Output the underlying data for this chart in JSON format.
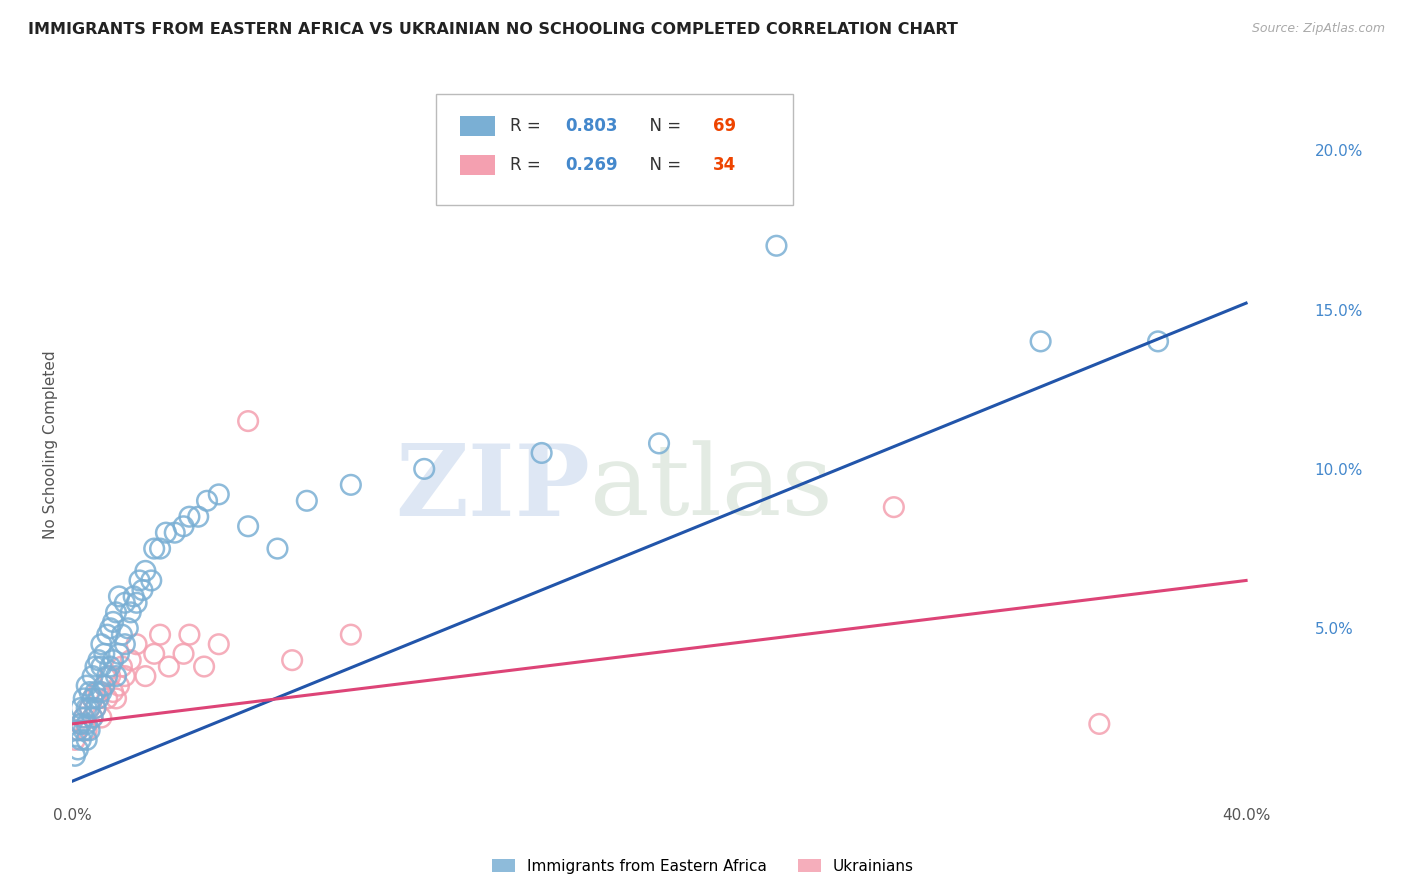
{
  "title": "IMMIGRANTS FROM EASTERN AFRICA VS UKRAINIAN NO SCHOOLING COMPLETED CORRELATION CHART",
  "source": "Source: ZipAtlas.com",
  "ylabel": "No Schooling Completed",
  "watermark_zip": "ZIP",
  "watermark_atlas": "atlas",
  "blue_label": "Immigrants from Eastern Africa",
  "pink_label": "Ukrainians",
  "blue_R": 0.803,
  "blue_N": 69,
  "pink_R": 0.269,
  "pink_N": 34,
  "xlim": [
    0.0,
    0.42
  ],
  "ylim": [
    -0.005,
    0.22
  ],
  "x_ticks": [
    0.0,
    0.1,
    0.2,
    0.3,
    0.4
  ],
  "x_tick_labels": [
    "0.0%",
    "",
    "",
    "",
    "40.0%"
  ],
  "y_ticks_right": [
    0.0,
    0.05,
    0.1,
    0.15,
    0.2
  ],
  "y_tick_labels_right": [
    "",
    "5.0%",
    "10.0%",
    "15.0%",
    "20.0%"
  ],
  "blue_color": "#7aafd4",
  "pink_color": "#f4a0b0",
  "line_blue_color": "#2255aa",
  "line_pink_color": "#dd4477",
  "background_color": "#ffffff",
  "grid_color": "#cccccc",
  "blue_scatter_x": [
    0.001,
    0.002,
    0.002,
    0.003,
    0.003,
    0.003,
    0.004,
    0.004,
    0.004,
    0.005,
    0.005,
    0.005,
    0.005,
    0.006,
    0.006,
    0.006,
    0.007,
    0.007,
    0.007,
    0.008,
    0.008,
    0.008,
    0.009,
    0.009,
    0.01,
    0.01,
    0.01,
    0.011,
    0.011,
    0.012,
    0.012,
    0.013,
    0.013,
    0.014,
    0.014,
    0.015,
    0.015,
    0.016,
    0.016,
    0.017,
    0.018,
    0.018,
    0.019,
    0.02,
    0.021,
    0.022,
    0.023,
    0.024,
    0.025,
    0.027,
    0.028,
    0.03,
    0.032,
    0.035,
    0.038,
    0.04,
    0.043,
    0.046,
    0.05,
    0.06,
    0.07,
    0.08,
    0.095,
    0.12,
    0.16,
    0.2,
    0.24,
    0.33,
    0.37
  ],
  "blue_scatter_y": [
    0.01,
    0.012,
    0.018,
    0.015,
    0.02,
    0.025,
    0.018,
    0.022,
    0.028,
    0.015,
    0.02,
    0.025,
    0.032,
    0.018,
    0.025,
    0.03,
    0.022,
    0.028,
    0.035,
    0.025,
    0.03,
    0.038,
    0.028,
    0.04,
    0.03,
    0.038,
    0.045,
    0.032,
    0.042,
    0.035,
    0.048,
    0.038,
    0.05,
    0.04,
    0.052,
    0.035,
    0.055,
    0.042,
    0.06,
    0.048,
    0.045,
    0.058,
    0.05,
    0.055,
    0.06,
    0.058,
    0.065,
    0.062,
    0.068,
    0.065,
    0.075,
    0.075,
    0.08,
    0.08,
    0.082,
    0.085,
    0.085,
    0.09,
    0.092,
    0.082,
    0.075,
    0.09,
    0.095,
    0.1,
    0.105,
    0.108,
    0.17,
    0.14,
    0.14
  ],
  "pink_scatter_x": [
    0.001,
    0.002,
    0.003,
    0.004,
    0.005,
    0.006,
    0.007,
    0.007,
    0.008,
    0.009,
    0.01,
    0.011,
    0.012,
    0.013,
    0.014,
    0.015,
    0.016,
    0.017,
    0.018,
    0.02,
    0.022,
    0.025,
    0.028,
    0.03,
    0.033,
    0.038,
    0.04,
    0.045,
    0.05,
    0.06,
    0.075,
    0.095,
    0.28,
    0.35
  ],
  "pink_scatter_y": [
    0.015,
    0.018,
    0.02,
    0.022,
    0.018,
    0.025,
    0.028,
    0.022,
    0.025,
    0.03,
    0.022,
    0.032,
    0.028,
    0.035,
    0.03,
    0.028,
    0.032,
    0.038,
    0.035,
    0.04,
    0.045,
    0.035,
    0.042,
    0.048,
    0.038,
    0.042,
    0.048,
    0.038,
    0.045,
    0.115,
    0.04,
    0.048,
    0.088,
    0.02
  ],
  "blue_line_x": [
    0.0,
    0.4
  ],
  "blue_line_y": [
    0.002,
    0.152
  ],
  "pink_line_x": [
    0.0,
    0.4
  ],
  "pink_line_y": [
    0.02,
    0.065
  ]
}
